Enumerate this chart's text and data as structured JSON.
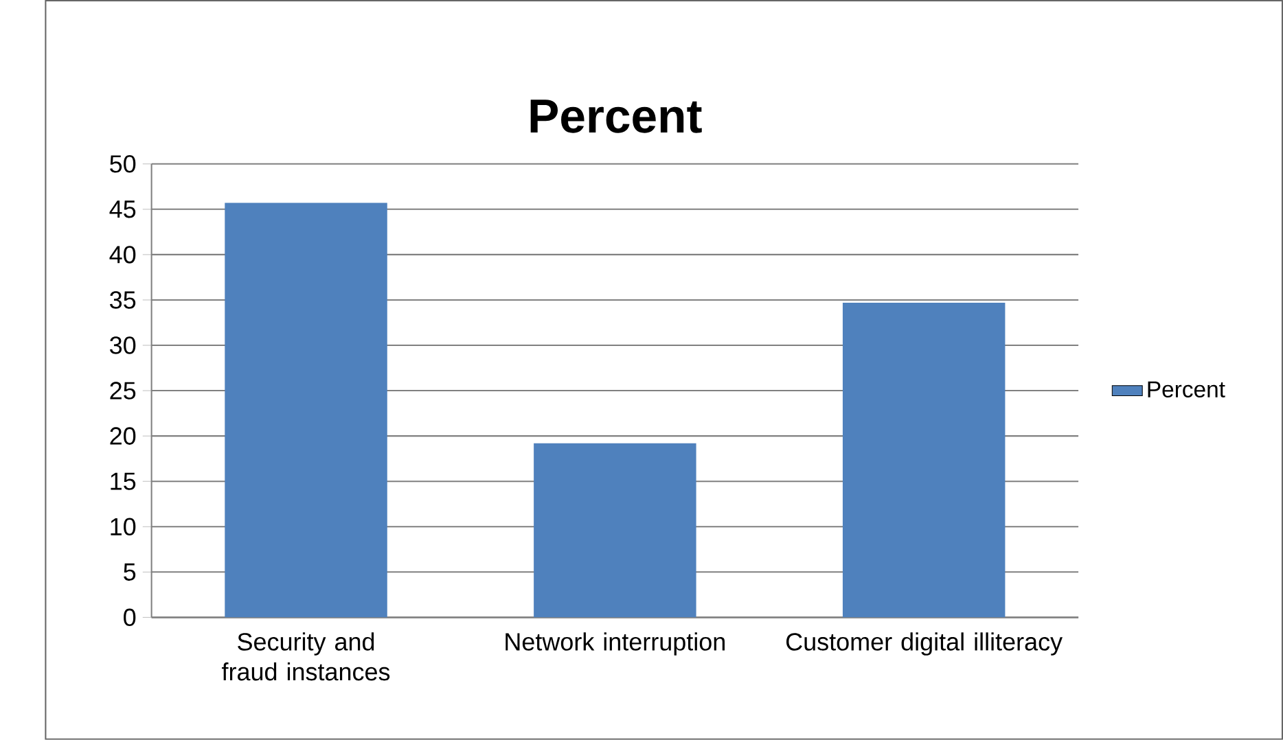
{
  "chart_data": {
    "type": "bar",
    "title": "Percent",
    "categories": [
      "Security and fraud instances",
      "Network interruption",
      "Customer digital illiteracy"
    ],
    "series": [
      {
        "name": "Percent",
        "color": "#4f81bd",
        "values": [
          45.7,
          19.2,
          34.7
        ]
      }
    ],
    "ylim": [
      0,
      50
    ],
    "yticks": [
      0,
      5,
      10,
      15,
      20,
      25,
      30,
      35,
      40,
      45,
      50
    ],
    "grid": "y",
    "legend": "right"
  }
}
